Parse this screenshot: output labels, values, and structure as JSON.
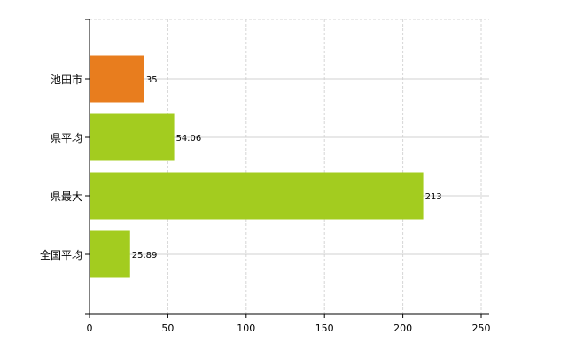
{
  "chart_data": {
    "type": "bar",
    "orientation": "horizontal",
    "categories": [
      "池田市",
      "県平均",
      "県最大",
      "全国平均"
    ],
    "values": [
      35,
      54.06,
      213,
      25.89
    ],
    "data_labels": [
      "35",
      "54.06",
      "213",
      "25.89"
    ],
    "bar_colors": [
      "#e87d1e",
      "#a3cc1f",
      "#a3cc1f",
      "#a3cc1f"
    ],
    "xlim": [
      0,
      250
    ],
    "x_ticks": [
      "0",
      "50",
      "100",
      "150",
      "200",
      "250"
    ],
    "grid": true,
    "title": "",
    "xlabel": "",
    "ylabel": ""
  }
}
